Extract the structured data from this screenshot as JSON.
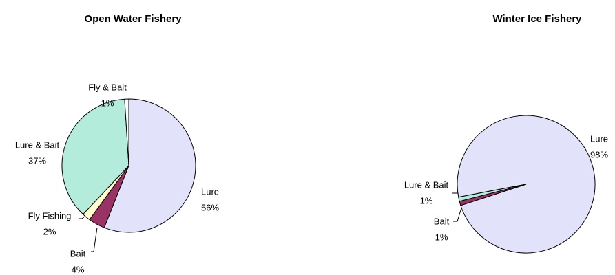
{
  "chart_data": [
    {
      "type": "pie",
      "title": "Open Water Fishery",
      "categories": [
        "Lure",
        "Bait",
        "Fly Fishing",
        "Lure & Bait",
        "Fly & Bait"
      ],
      "values": [
        56,
        4,
        2,
        37,
        1
      ],
      "value_labels": [
        "56%",
        "4%",
        "2%",
        "37%",
        "1%"
      ],
      "colors": [
        "#e2e2fa",
        "#993366",
        "#ffffcc",
        "#b4ecdc",
        "#ffffff"
      ]
    },
    {
      "type": "pie",
      "title": "Winter Ice Fishery",
      "categories": [
        "Lure",
        "Bait",
        "Lure & Bait"
      ],
      "values": [
        98,
        1,
        1
      ],
      "value_labels": [
        "98%",
        "1%",
        "1%"
      ],
      "colors": [
        "#e2e2fa",
        "#993366",
        "#b4ecdc"
      ]
    }
  ]
}
